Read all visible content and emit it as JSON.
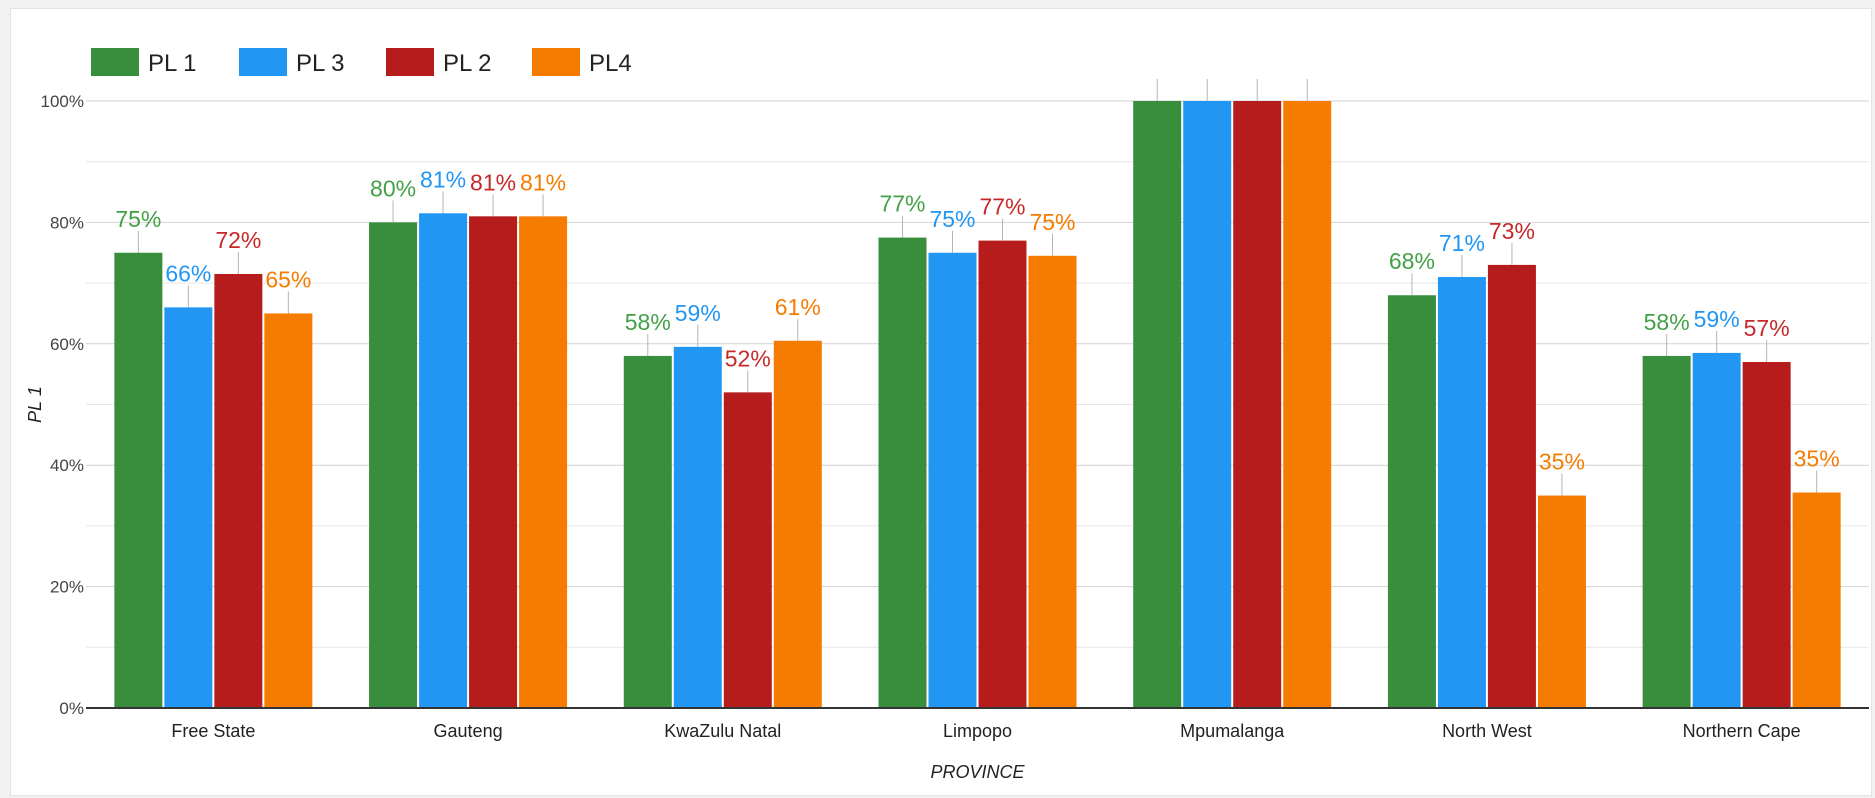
{
  "chart_data": {
    "type": "bar",
    "title": "",
    "xlabel": "PROVINCE",
    "ylabel": "PL 1",
    "ylim": [
      0,
      1
    ],
    "y_ticks": [
      "0%",
      "20%",
      "40%",
      "60%",
      "80%",
      "100%"
    ],
    "grid": true,
    "legend_position": "top-left",
    "categories": [
      "Free State",
      "Gauteng",
      "KwaZulu Natal",
      "Limpopo",
      "Mpumalanga",
      "North West",
      "Northern Cape"
    ],
    "series": [
      {
        "name": "PL 1",
        "color": "#388e3c",
        "label_color": "#43a047",
        "values": [
          0.75,
          0.8,
          0.58,
          0.775,
          1.0,
          0.68,
          0.58
        ],
        "labels": [
          "75%",
          "80%",
          "58%",
          "77%",
          "",
          "68%",
          "58%"
        ]
      },
      {
        "name": "PL 3",
        "color": "#2196f3",
        "label_color": "#2196f3",
        "values": [
          0.66,
          0.815,
          0.595,
          0.75,
          1.0,
          0.71,
          0.585
        ],
        "labels": [
          "66%",
          "81%",
          "59%",
          "75%",
          "",
          "71%",
          "59%"
        ]
      },
      {
        "name": "PL 2",
        "color": "#b71c1c",
        "label_color": "#c62828",
        "values": [
          0.715,
          0.81,
          0.52,
          0.77,
          1.0,
          0.73,
          0.57
        ],
        "labels": [
          "72%",
          "81%",
          "52%",
          "77%",
          "",
          "73%",
          "57%"
        ]
      },
      {
        "name": "PL4",
        "color": "#f57c00",
        "label_color": "#f57c00",
        "values": [
          0.65,
          0.81,
          0.605,
          0.745,
          1.0,
          0.35,
          0.355
        ],
        "labels": [
          "65%",
          "81%",
          "61%",
          "75%",
          "",
          "35%",
          "35%"
        ]
      }
    ]
  }
}
